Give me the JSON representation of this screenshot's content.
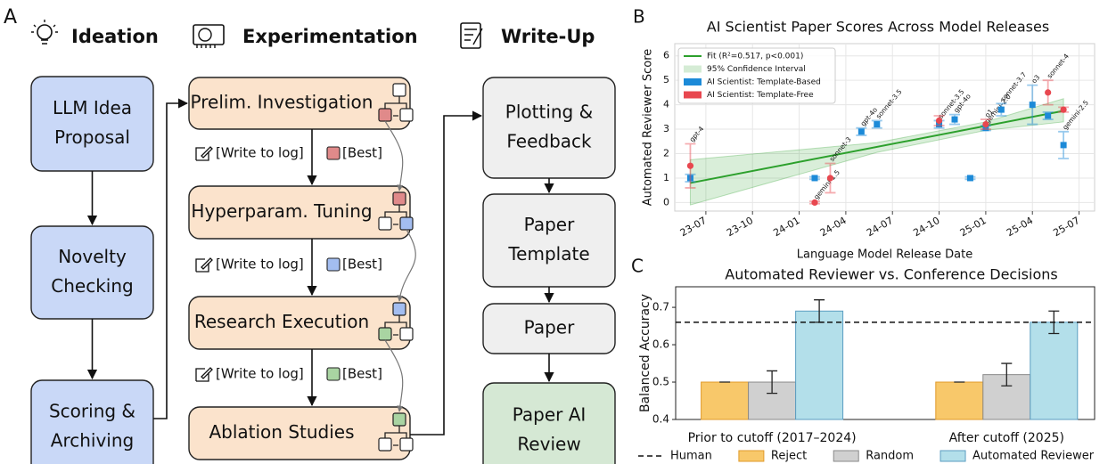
{
  "diagram": {
    "panel_label": "A",
    "columns": [
      {
        "title": "Ideation",
        "boxes": [
          {
            "lines": [
              "LLM Idea",
              "Proposal"
            ]
          },
          {
            "lines": [
              "Novelty",
              "Checking"
            ]
          },
          {
            "lines": [
              "Scoring &",
              "Archiving"
            ]
          }
        ]
      },
      {
        "title": "Experimentation",
        "boxes": [
          {
            "lines": [
              "Prelim. Investigation"
            ]
          },
          {
            "lines": [
              "Hyperparam. Tuning"
            ]
          },
          {
            "lines": [
              "Research Execution"
            ]
          },
          {
            "lines": [
              "Ablation Studies"
            ]
          }
        ],
        "notes": [
          {
            "log": "[Write to log]",
            "best": "[Best]"
          },
          {
            "log": "[Write to log]",
            "best": "[Best]"
          },
          {
            "log": "[Write to log]",
            "best": "[Best]"
          }
        ]
      },
      {
        "title": "Write-Up",
        "boxes": [
          {
            "lines": [
              "Plotting &",
              "Feedback"
            ]
          },
          {
            "lines": [
              "Paper",
              "Template"
            ]
          },
          {
            "lines": [
              "Paper"
            ]
          },
          {
            "lines": [
              "Paper AI",
              "Review"
            ]
          }
        ]
      }
    ]
  },
  "chart_data": [
    {
      "type": "scatter",
      "panel_label": "B",
      "title": "AI Scientist Paper Scores Across Model Releases",
      "xlabel": "Language Model Release Date",
      "ylabel": "Automated Reviewer Score",
      "xlim": [
        "2023-05",
        "2025-08"
      ],
      "xticks": [
        {
          "value": "2023-07",
          "label": "23-07"
        },
        {
          "value": "2023-10",
          "label": "23-10"
        },
        {
          "value": "2024-01",
          "label": "24-01"
        },
        {
          "value": "2024-04",
          "label": "24-04"
        },
        {
          "value": "2024-07",
          "label": "24-07"
        },
        {
          "value": "2024-10",
          "label": "24-10"
        },
        {
          "value": "2025-01",
          "label": "25-01"
        },
        {
          "value": "2025-04",
          "label": "25-04"
        },
        {
          "value": "2025-07",
          "label": "25-07"
        }
      ],
      "ylim": [
        -0.35,
        6.5
      ],
      "yticks": [
        0,
        1,
        2,
        3,
        4,
        5,
        6
      ],
      "grid": true,
      "legend": "upper left",
      "fit": {
        "name": "Fit (R²=0.517, p<0.001)",
        "color": "#2ca02c",
        "x": [
          "2023-06",
          "2025-06"
        ],
        "values": [
          0.8,
          3.75
        ]
      },
      "confidence_band": {
        "name": "95% Confidence Interval",
        "color": "#2ca02c",
        "x": [
          "2023-06",
          "2024-06",
          "2025-01",
          "2025-06"
        ],
        "lower": [
          -0.1,
          2.05,
          2.95,
          3.3
        ],
        "upper": [
          1.75,
          2.45,
          3.3,
          4.25
        ]
      },
      "series": [
        {
          "name": "AI Scientist: Template-Based",
          "color": "#1c8ad8",
          "marker": "square",
          "x": [
            "2023-06",
            "2024-02",
            "2024-05",
            "2024-06",
            "2024-10",
            "2024-11",
            "2024-12",
            "2025-01",
            "2025-02",
            "2025-04",
            "2025-05",
            "2025-06"
          ],
          "values": [
            1.0,
            1.0,
            2.9,
            3.2,
            3.2,
            3.4,
            1.0,
            3.05,
            3.8,
            4.0,
            3.55,
            2.35
          ],
          "errors": [
            0.15,
            0.05,
            0.15,
            0.15,
            0.15,
            0.2,
            0.05,
            0.1,
            0.25,
            0.8,
            0.15,
            0.55
          ],
          "labels": [
            null,
            null,
            "gpt-4o",
            "sonnet-3.5",
            "sonnet-3.5",
            "gpt-4o",
            null,
            "gemini-2.0",
            "sonnet-3.7",
            "o3",
            null,
            "gemini-2.5"
          ]
        },
        {
          "name": "AI Scientist: Template-Free",
          "color": "#e8474f",
          "marker": "circle",
          "x": [
            "2023-06",
            "2024-02",
            "2024-03",
            "2024-10",
            "2025-01",
            "2025-05",
            "2025-06"
          ],
          "values": [
            1.5,
            0,
            1.0,
            3.35,
            3.2,
            4.5,
            3.8
          ],
          "errors": [
            0.9,
            0.05,
            0.6,
            0.2,
            0.2,
            0.5,
            0.1
          ],
          "labels": [
            "gpt-4",
            "gemini-1.5",
            "sonnet-3",
            null,
            "o1",
            "sonnet-4",
            null
          ]
        }
      ]
    },
    {
      "type": "bar",
      "panel_label": "C",
      "title": "Automated Reviewer vs. Conference Decisions",
      "ylabel": "Balanced Accuracy",
      "categories": [
        "Prior to cutoff (2017–2024)",
        "After cutoff (2025)"
      ],
      "ylim": [
        0.4,
        0.755
      ],
      "yticks": [
        0.4,
        0.5,
        0.6,
        0.7
      ],
      "legend": "lower center",
      "reference_line": {
        "name": "Human",
        "value": 0.66,
        "color": "#111111",
        "style": "dashed"
      },
      "series": [
        {
          "name": "Reject",
          "color": "#f8c86a",
          "edge": "#e09a2a",
          "values": [
            0.5,
            0.5
          ],
          "errors": [
            0,
            0
          ]
        },
        {
          "name": "Random",
          "color": "#d0d0d0",
          "edge": "#8a8a8a",
          "values": [
            0.5,
            0.52
          ],
          "errors": [
            0.03,
            0.03
          ]
        },
        {
          "name": "Automated Reviewer",
          "color": "#b3dfea",
          "edge": "#5b9ec2",
          "values": [
            0.69,
            0.66
          ],
          "errors": [
            0.03,
            0.03
          ]
        }
      ]
    }
  ]
}
